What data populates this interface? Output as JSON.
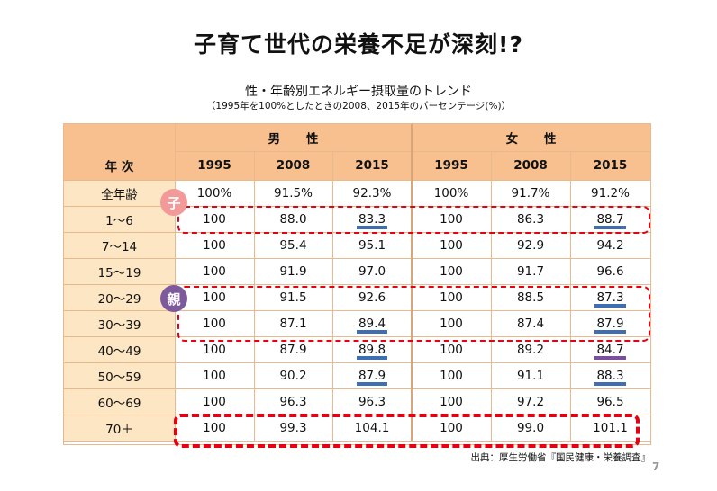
{
  "title": "子育て世代の栄養不足が深刻!?",
  "subtitle": "性・年齢別エネルギー摂取量のトレンド",
  "note": "（1995年を100%としたときの2008、2015年のパーセンテージ(%)）",
  "table": {
    "row_header": "年 次",
    "male_label": "男 性",
    "female_label": "女 性",
    "years": [
      "1995",
      "2008",
      "2015",
      "1995",
      "2008",
      "2015"
    ],
    "rows": [
      {
        "age": "全年齢",
        "values": [
          "100%",
          "91.5%",
          "92.3%",
          "100%",
          "91.7%",
          "91.2%"
        ]
      },
      {
        "age": "1〜6",
        "values": [
          "100",
          "88.0",
          "83.3",
          "100",
          "86.3",
          "88.7"
        ]
      },
      {
        "age": "7〜14",
        "values": [
          "100",
          "95.4",
          "95.1",
          "100",
          "92.9",
          "94.2"
        ]
      },
      {
        "age": "15〜19",
        "values": [
          "100",
          "91.9",
          "97.0",
          "100",
          "91.7",
          "96.6"
        ]
      },
      {
        "age": "20〜29",
        "values": [
          "100",
          "91.5",
          "92.6",
          "100",
          "88.5",
          "87.3"
        ]
      },
      {
        "age": "30〜39",
        "values": [
          "100",
          "87.1",
          "89.4",
          "100",
          "87.4",
          "87.9"
        ]
      },
      {
        "age": "40〜49",
        "values": [
          "100",
          "87.9",
          "89.8",
          "100",
          "89.2",
          "84.7"
        ]
      },
      {
        "age": "50〜59",
        "values": [
          "100",
          "90.2",
          "87.9",
          "100",
          "91.1",
          "88.3"
        ]
      },
      {
        "age": "60〜69",
        "values": [
          "100",
          "96.3",
          "96.3",
          "100",
          "97.2",
          "96.5"
        ]
      },
      {
        "age": "70＋",
        "values": [
          "100",
          "99.3",
          "104.1",
          "100",
          "99.0",
          "101.1"
        ]
      }
    ]
  },
  "badges": {
    "child": "子",
    "parent": "親"
  },
  "colors": {
    "header_bg": "#f8c08e",
    "label_bg": "#fde6c4",
    "underline_blue": "#3f6fb0",
    "underline_purple": "#7a4f9c",
    "badge_child": "#f29a9a",
    "badge_parent": "#7d5a9c",
    "highlight_red": "#e60012"
  },
  "source": "出典：厚生労働省『国民健康・栄養調査』",
  "page_number": "7"
}
